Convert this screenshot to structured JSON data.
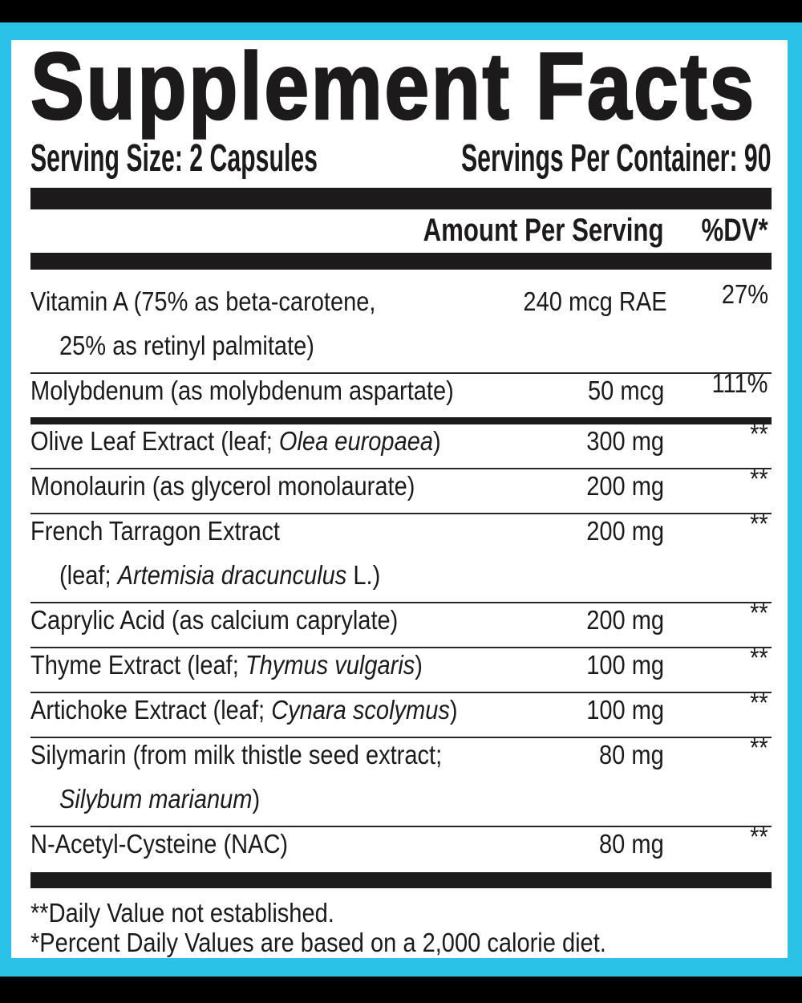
{
  "label": {
    "title": "Supplement Facts",
    "serving_size": "Serving Size: 2 Capsules",
    "servings_per_container": "Servings Per Container: 90",
    "columns": {
      "amount": "Amount Per Serving",
      "dv": "%DV*"
    },
    "rows": [
      {
        "top_rule": "none",
        "name_lines": [
          [
            {
              "t": "Vitamin A (75% as beta-carotene,",
              "i": false
            }
          ],
          [
            {
              "t": "25% as retinyl palmitate)",
              "i": false
            }
          ]
        ],
        "amount": "240 mcg RAE",
        "dv": "27%"
      },
      {
        "top_rule": "thin",
        "name_lines": [
          [
            {
              "t": "Molybdenum (as molybdenum aspartate)",
              "i": false
            }
          ]
        ],
        "amount": "50 mcg",
        "dv": "111%"
      },
      {
        "top_rule": "thick",
        "name_lines": [
          [
            {
              "t": "Olive Leaf Extract (leaf; ",
              "i": false
            },
            {
              "t": "Olea europaea",
              "i": true
            },
            {
              "t": ")",
              "i": false
            }
          ]
        ],
        "amount": "300 mg",
        "dv": "**"
      },
      {
        "top_rule": "thin",
        "name_lines": [
          [
            {
              "t": "Monolaurin (as glycerol monolaurate)",
              "i": false
            }
          ]
        ],
        "amount": "200 mg",
        "dv": "**"
      },
      {
        "top_rule": "thin",
        "name_lines": [
          [
            {
              "t": "French Tarragon Extract",
              "i": false
            }
          ],
          [
            {
              "t": "(leaf; ",
              "i": false
            },
            {
              "t": "Artemisia dracunculus",
              "i": true
            },
            {
              "t": " L.)",
              "i": false
            }
          ]
        ],
        "amount": "200 mg",
        "dv": "**"
      },
      {
        "top_rule": "thin",
        "name_lines": [
          [
            {
              "t": "Caprylic Acid (as calcium caprylate)",
              "i": false
            }
          ]
        ],
        "amount": "200 mg",
        "dv": "**"
      },
      {
        "top_rule": "thin",
        "name_lines": [
          [
            {
              "t": "Thyme Extract (leaf; ",
              "i": false
            },
            {
              "t": "Thymus vulgaris",
              "i": true
            },
            {
              "t": ")",
              "i": false
            }
          ]
        ],
        "amount": "100 mg",
        "dv": "**"
      },
      {
        "top_rule": "thin",
        "name_lines": [
          [
            {
              "t": "Artichoke Extract (leaf; ",
              "i": false
            },
            {
              "t": "Cynara scolymus",
              "i": true
            },
            {
              "t": ")",
              "i": false
            }
          ]
        ],
        "amount": "100 mg",
        "dv": "**"
      },
      {
        "top_rule": "thin",
        "name_lines": [
          [
            {
              "t": "Silymarin (from milk thistle seed extract;",
              "i": false
            }
          ],
          [
            {
              "t": "Silybum marianum",
              "i": true
            },
            {
              "t": ")",
              "i": false
            }
          ]
        ],
        "amount": "80 mg",
        "dv": "**"
      },
      {
        "top_rule": "thin",
        "name_lines": [
          [
            {
              "t": "N-Acetyl-Cysteine (NAC)",
              "i": false
            }
          ]
        ],
        "amount": "80 mg",
        "dv": "**"
      }
    ],
    "footnotes": [
      "**Daily Value not established.",
      "*Percent Daily Values are based on a 2,000 calorie diet."
    ],
    "colors": {
      "border": "#2bc2e8",
      "ink": "#1d1a1b",
      "panel": "#ffffff",
      "outer": "#000000"
    }
  }
}
